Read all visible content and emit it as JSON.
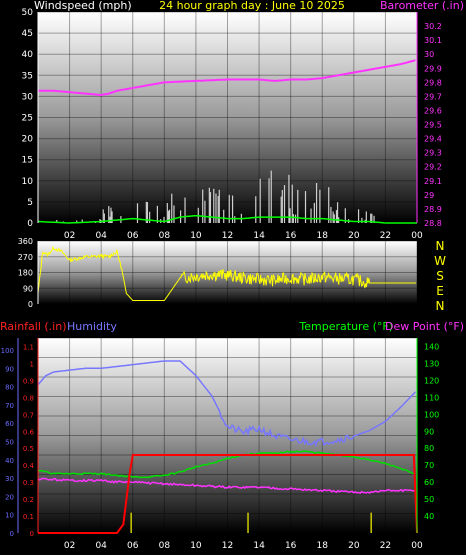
{
  "colors": {
    "wind": "#ffffff",
    "gust": "#cfcfcf",
    "wind_avg": "#00ff00",
    "barometer": "#ff33ff",
    "direction": "#ffff00",
    "rain": "#ff0000",
    "humidity": "#7777ff",
    "temperature": "#00dd00",
    "dewpoint": "#ff33ff",
    "title": "#ffff00",
    "axis_left_bottom": "#ff2222",
    "humidity_axis": "#6a6aff",
    "temp_axis": "#00ff00"
  },
  "hours": [
    "02",
    "04",
    "06",
    "08",
    "10",
    "12",
    "14",
    "16",
    "18",
    "20",
    "22",
    "00"
  ],
  "chart_data": [
    {
      "type": "line",
      "title": "24 hour graph day : June 10 2025",
      "ylabel": "Windspeed (mph)",
      "y2label": "Barometer (.in)",
      "ylim": [
        0,
        50
      ],
      "y_ticks": [
        "0",
        "5",
        "10",
        "15",
        "20",
        "25",
        "30",
        "35",
        "40",
        "45",
        "50"
      ],
      "y2lim": [
        28.8,
        30.3
      ],
      "y2_ticks": [
        "28.8",
        "28.9",
        "29",
        "29.1",
        "29.2",
        "29.3",
        "29.4",
        "29.5",
        "29.6",
        "29.7",
        "29.8",
        "29.9",
        "30",
        "30.1",
        "30.2"
      ],
      "series": [
        {
          "name": "Windspeed",
          "color_key": "wind",
          "x": [
            0,
            2,
            4,
            6,
            8,
            9,
            10,
            11,
            12,
            13,
            14,
            15,
            16,
            17,
            18,
            19,
            20,
            21,
            22,
            23,
            24
          ],
          "values": [
            1,
            0,
            1,
            3,
            1,
            4,
            5,
            4,
            3,
            3,
            4,
            4,
            4,
            3,
            3,
            2,
            1,
            1,
            0,
            0,
            0
          ]
        },
        {
          "name": "Barometer",
          "color_key": "barometer",
          "x": [
            0,
            1,
            2,
            3,
            4,
            4.5,
            5,
            6,
            7,
            8,
            10,
            12,
            14,
            15,
            16,
            17,
            18,
            19,
            20,
            21,
            22,
            23,
            24
          ],
          "values": [
            29.74,
            29.74,
            29.73,
            29.72,
            29.71,
            29.72,
            29.74,
            29.76,
            29.78,
            29.8,
            29.81,
            29.82,
            29.82,
            29.81,
            29.82,
            29.82,
            29.83,
            29.85,
            29.87,
            29.89,
            29.91,
            29.93,
            29.96
          ]
        }
      ]
    },
    {
      "type": "line",
      "ylabel": "",
      "ylim": [
        0,
        360
      ],
      "y_ticks": [
        "0",
        "90",
        "180",
        "270",
        "360"
      ],
      "compass_labels": [
        "N",
        "W",
        "S",
        "E",
        "N"
      ],
      "series": [
        {
          "name": "Wind Direction",
          "color_key": "direction",
          "x": [
            0,
            0.3,
            0.6,
            1,
            1.5,
            2,
            2.5,
            3,
            3.5,
            4,
            4.5,
            5,
            5.3,
            5.6,
            6,
            6.3,
            7,
            8,
            9,
            10,
            11,
            12,
            13,
            14,
            15,
            16,
            17,
            18,
            19,
            20,
            21,
            22,
            23,
            24
          ],
          "values": [
            60,
            300,
            280,
            320,
            300,
            250,
            260,
            270,
            270,
            275,
            270,
            300,
            200,
            60,
            20,
            20,
            20,
            20,
            150,
            160,
            170,
            165,
            150,
            140,
            135,
            150,
            140,
            155,
            145,
            140,
            120,
            120,
            120,
            120
          ]
        }
      ]
    },
    {
      "type": "line",
      "ylabel": "Rainfall (.in)",
      "ylabel2": "Humidity",
      "y2label": "Temperature (°F)",
      "y2label2": "Dew Point (°F)",
      "ylim": [
        0,
        1.15
      ],
      "y_ticks": [
        "0",
        "0.1",
        "0.2",
        "0.3",
        "0.4",
        "0.5",
        "0.6",
        "0.7",
        "0.8",
        "0.9",
        "1",
        "1.1"
      ],
      "humidity_ticks": [
        "0",
        "10",
        "20",
        "30",
        "40",
        "50",
        "60",
        "70",
        "80",
        "90",
        "100"
      ],
      "y2lim": [
        30,
        145
      ],
      "y2_ticks": [
        "40",
        "50",
        "60",
        "70",
        "80",
        "90",
        "100",
        "110",
        "120",
        "130",
        "140"
      ],
      "series": [
        {
          "name": "Rainfall",
          "color_key": "rain",
          "x": [
            0,
            5,
            5.4,
            5.8,
            6,
            8,
            10,
            12,
            14,
            16,
            18,
            20,
            22,
            23.8,
            24
          ],
          "values": [
            0,
            0,
            0.05,
            0.35,
            0.46,
            0.46,
            0.46,
            0.46,
            0.46,
            0.46,
            0.46,
            0.46,
            0.46,
            0.46,
            0
          ]
        },
        {
          "name": "Humidity",
          "color_key": "humidity",
          "x": [
            0,
            0.5,
            1,
            2,
            3,
            4,
            5,
            6,
            7,
            8,
            9,
            10,
            11,
            12,
            13,
            14,
            15,
            16,
            17,
            18,
            19,
            20,
            21,
            22,
            23,
            24
          ],
          "values": [
            81,
            86,
            88,
            89,
            90,
            90,
            91,
            92,
            93,
            94,
            94,
            86,
            75,
            58,
            55,
            57,
            53,
            51,
            50,
            50,
            51,
            53,
            56,
            61,
            69,
            78
          ]
        },
        {
          "name": "Temperature",
          "color_key": "temperature",
          "x": [
            0,
            1,
            2,
            4,
            5,
            6,
            7,
            8,
            9,
            10,
            11,
            12,
            13,
            14,
            15,
            16,
            17,
            18,
            19,
            20,
            21,
            22,
            23,
            24
          ],
          "values": [
            67,
            65,
            65,
            65,
            64,
            63,
            63,
            64,
            66,
            69,
            71,
            74,
            76,
            77,
            77,
            78,
            78,
            77,
            76,
            75,
            73,
            71,
            68,
            64
          ]
        },
        {
          "name": "Dew Point",
          "color_key": "dewpoint",
          "x": [
            0,
            2,
            4,
            5,
            6,
            8,
            10,
            12,
            14,
            16,
            18,
            20,
            21,
            22,
            24
          ],
          "values": [
            62,
            61,
            61,
            60,
            60,
            59,
            58,
            57,
            57,
            56,
            55,
            54,
            54,
            55,
            55
          ]
        }
      ]
    }
  ]
}
